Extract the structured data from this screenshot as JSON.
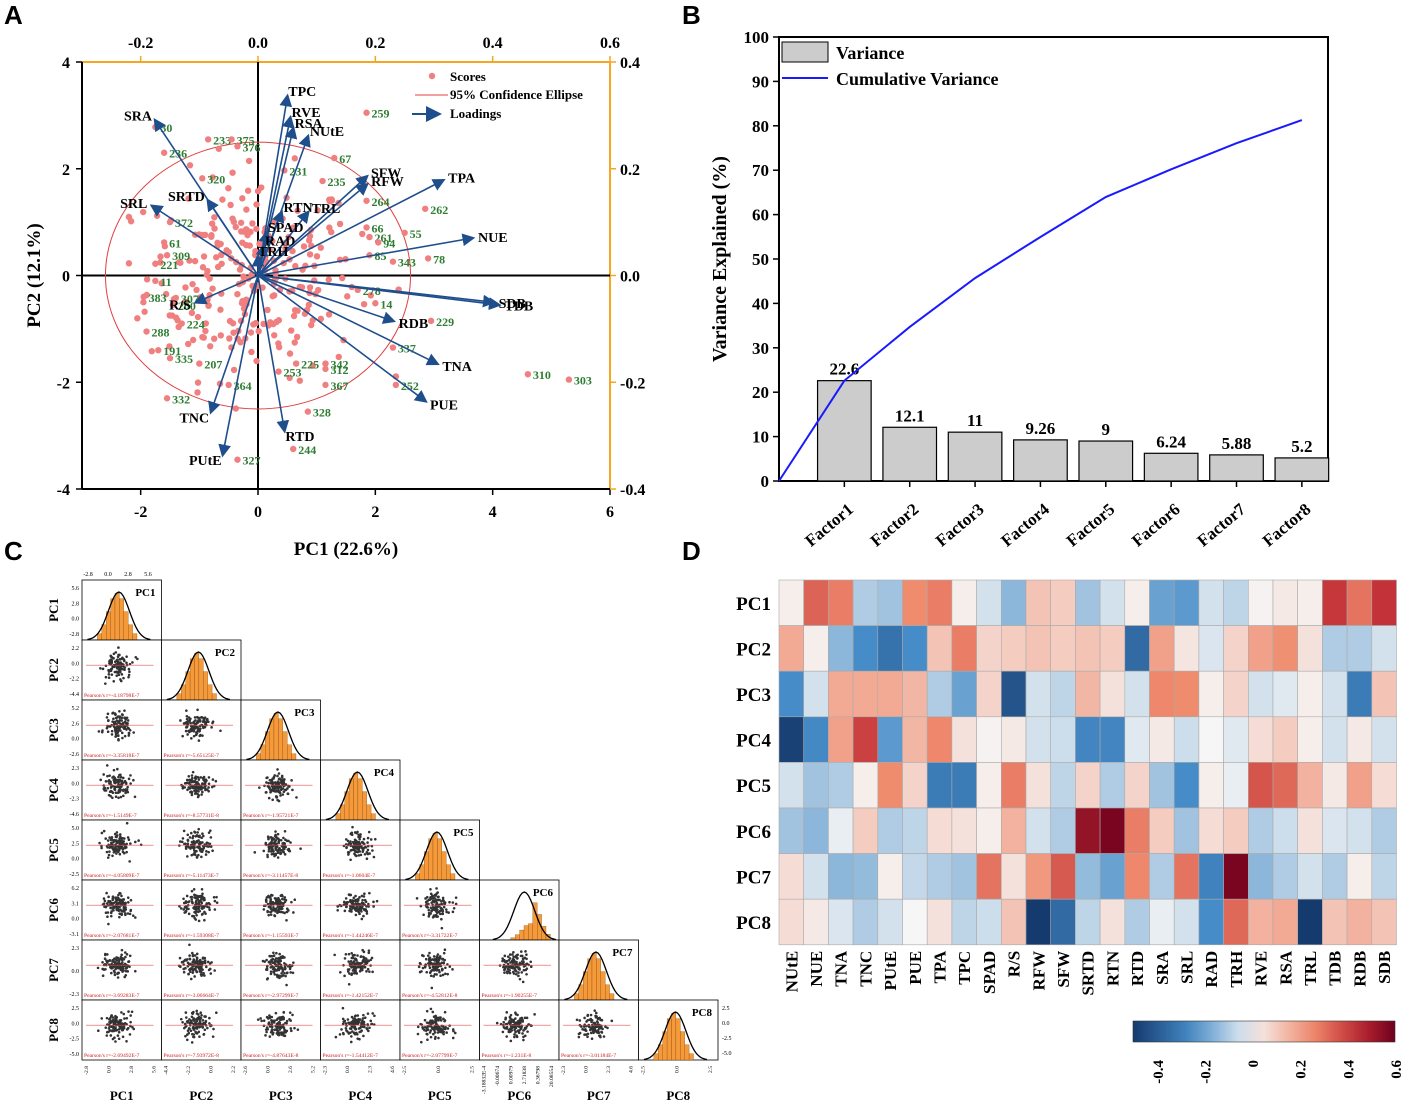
{
  "panel_labels": [
    "A",
    "B",
    "C",
    "D"
  ],
  "colors": {
    "orange": "#f5a623",
    "navy": "#1f4e8c",
    "green": "#2e7d32",
    "score": "#f07f7f",
    "gray_bar": "#cccccc",
    "blue_line": "#1a1aff",
    "hist": "#f59a3b"
  },
  "chart_data": [
    {
      "id": "A",
      "type": "scatter",
      "title": "",
      "xlabel": "PC1 (22.6%)",
      "ylabel": "PC2 (12.1%)",
      "xlim": [
        -3,
        6
      ],
      "ylim": [
        -4,
        4
      ],
      "x_ticks": [
        "-2",
        "0",
        "2",
        "4",
        "6"
      ],
      "y_ticks": [
        "4",
        "2",
        "0",
        "-2",
        "-4"
      ],
      "top_ticks": [
        "-0.2",
        "0.0",
        "0.2",
        "0.4",
        "0.6"
      ],
      "top_lim": [
        -0.3,
        0.6
      ],
      "right_ticks": [
        "0.4",
        "0.2",
        "0.0",
        "-0.2",
        "-0.4"
      ],
      "right_lim": [
        -0.4,
        0.4
      ],
      "legend": {
        "scores": "Scores",
        "ellipse": "95% Confidence Ellipse",
        "loadings": "Loadings"
      },
      "ellipse": {
        "cx": 0,
        "cy": 0,
        "rx": 2.6,
        "ry": 2.5
      },
      "loadings": [
        {
          "name": "TPC",
          "x": 0.05,
          "y": 0.335
        },
        {
          "name": "RVE",
          "x": 0.055,
          "y": 0.295
        },
        {
          "name": "RSA",
          "x": 0.06,
          "y": 0.275
        },
        {
          "name": "NUtE",
          "x": 0.085,
          "y": 0.26
        },
        {
          "name": "SRA",
          "x": -0.175,
          "y": 0.29
        },
        {
          "name": "SFW",
          "x": 0.185,
          "y": 0.185
        },
        {
          "name": "RFW",
          "x": 0.185,
          "y": 0.17
        },
        {
          "name": "TPA",
          "x": 0.315,
          "y": 0.178
        },
        {
          "name": "SRTD",
          "x": -0.085,
          "y": 0.14
        },
        {
          "name": "SRL",
          "x": -0.18,
          "y": 0.13
        },
        {
          "name": "RTN",
          "x": 0.04,
          "y": 0.118
        },
        {
          "name": "TRL",
          "x": 0.085,
          "y": 0.118
        },
        {
          "name": "NUE",
          "x": 0.365,
          "y": 0.07
        },
        {
          "name": "SPAD",
          "x": 0.015,
          "y": 0.08
        },
        {
          "name": "RAD",
          "x": 0.01,
          "y": 0.055
        },
        {
          "name": "TRH",
          "x": 0.0,
          "y": 0.035
        },
        {
          "name": "SDB",
          "x": 0.4,
          "y": -0.05
        },
        {
          "name": "TDB",
          "x": 0.41,
          "y": -0.055
        },
        {
          "name": "R/S",
          "x": -0.105,
          "y": -0.05
        },
        {
          "name": "RDB",
          "x": 0.23,
          "y": -0.085
        },
        {
          "name": "TNA",
          "x": 0.305,
          "y": -0.165
        },
        {
          "name": "PUE",
          "x": 0.285,
          "y": -0.235
        },
        {
          "name": "TNC",
          "x": -0.08,
          "y": -0.255
        },
        {
          "name": "RTD",
          "x": 0.045,
          "y": -0.29
        },
        {
          "name": "PUtE",
          "x": -0.06,
          "y": -0.335
        }
      ],
      "labeled_scores": [
        {
          "id": "259",
          "x": 1.85,
          "y": 3.05
        },
        {
          "id": "67",
          "x": 1.3,
          "y": 2.2
        },
        {
          "id": "235",
          "x": 1.1,
          "y": 1.77
        },
        {
          "id": "264",
          "x": 1.85,
          "y": 1.4
        },
        {
          "id": "262",
          "x": 2.85,
          "y": 1.25
        },
        {
          "id": "66",
          "x": 1.85,
          "y": 0.9
        },
        {
          "id": "261",
          "x": 1.9,
          "y": 0.72
        },
        {
          "id": "55",
          "x": 2.5,
          "y": 0.8
        },
        {
          "id": "94",
          "x": 2.05,
          "y": 0.62
        },
        {
          "id": "85",
          "x": 1.9,
          "y": 0.38
        },
        {
          "id": "343",
          "x": 2.3,
          "y": 0.26
        },
        {
          "id": "78",
          "x": 2.9,
          "y": 0.32
        },
        {
          "id": "278",
          "x": 1.7,
          "y": -0.27
        },
        {
          "id": "14",
          "x": 2.0,
          "y": -0.52
        },
        {
          "id": "229",
          "x": 2.95,
          "y": -0.85
        },
        {
          "id": "337",
          "x": 2.3,
          "y": -1.35
        },
        {
          "id": "252",
          "x": 2.35,
          "y": -2.05
        },
        {
          "id": "310",
          "x": 4.6,
          "y": -1.85
        },
        {
          "id": "303",
          "x": 5.3,
          "y": -1.95
        },
        {
          "id": "367",
          "x": 1.15,
          "y": -2.05
        },
        {
          "id": "342",
          "x": 1.15,
          "y": -1.65
        },
        {
          "id": "312",
          "x": 1.15,
          "y": -1.75
        },
        {
          "id": "225",
          "x": 0.65,
          "y": -1.65
        },
        {
          "id": "253",
          "x": 0.35,
          "y": -1.8
        },
        {
          "id": "328",
          "x": 0.85,
          "y": -2.55
        },
        {
          "id": "244",
          "x": 0.6,
          "y": -3.25
        },
        {
          "id": "327",
          "x": -0.35,
          "y": -3.45
        },
        {
          "id": "332",
          "x": -1.55,
          "y": -2.3
        },
        {
          "id": "364",
          "x": -0.5,
          "y": -2.05
        },
        {
          "id": "191",
          "x": -1.7,
          "y": -1.4
        },
        {
          "id": "335",
          "x": -1.5,
          "y": -1.55
        },
        {
          "id": "207",
          "x": -1.0,
          "y": -1.65
        },
        {
          "id": "288",
          "x": -1.9,
          "y": -1.05
        },
        {
          "id": "383",
          "x": -1.95,
          "y": -0.4
        },
        {
          "id": "200",
          "x": -1.45,
          "y": -0.55
        },
        {
          "id": "307",
          "x": -1.4,
          "y": -0.42
        },
        {
          "id": "224",
          "x": -1.3,
          "y": -0.9
        },
        {
          "id": "11",
          "x": -1.75,
          "y": -0.1
        },
        {
          "id": "221",
          "x": -1.75,
          "y": 0.22
        },
        {
          "id": "309",
          "x": -1.55,
          "y": 0.38
        },
        {
          "id": "61",
          "x": -1.6,
          "y": 0.62
        },
        {
          "id": "372",
          "x": -1.5,
          "y": 1.0
        },
        {
          "id": "236",
          "x": -1.6,
          "y": 2.3
        },
        {
          "id": "30",
          "x": -1.75,
          "y": 2.78
        },
        {
          "id": "233",
          "x": -0.85,
          "y": 2.55
        },
        {
          "id": "375",
          "x": -0.45,
          "y": 2.55
        },
        {
          "id": "376",
          "x": -0.35,
          "y": 2.42
        },
        {
          "id": "320",
          "x": -0.95,
          "y": 1.82
        },
        {
          "id": "231",
          "x": 0.45,
          "y": 1.97
        }
      ],
      "anonymous_score_count": 260,
      "anonymous_score_seed": 12345
    },
    {
      "id": "B",
      "type": "bar",
      "categories": [
        "Factor1",
        "Factor2",
        "Factor3",
        "Factor4",
        "Factor5",
        "Factor6",
        "Factor7",
        "Factor8"
      ],
      "values": [
        22.6,
        12.1,
        11,
        9.26,
        9,
        6.24,
        5.88,
        5.2
      ],
      "value_labels": [
        "22.6",
        "12.1",
        "11",
        "9.26",
        "9",
        "6.24",
        "5.88",
        "5.2"
      ],
      "cumulative": [
        0,
        22.6,
        34.7,
        45.7,
        54.96,
        63.96,
        70.2,
        76.08,
        81.28
      ],
      "ylabel": "Variance Explained (%)",
      "xlabel": "",
      "ylim": [
        0,
        100
      ],
      "y_ticks": [
        "0",
        "10",
        "20",
        "30",
        "40",
        "50",
        "60",
        "70",
        "80",
        "90",
        "100"
      ],
      "legend": [
        "Variance",
        "Cumulative Variance"
      ]
    },
    {
      "id": "C",
      "type": "scatter",
      "title": "",
      "variables": [
        "PC1",
        "PC2",
        "PC3",
        "PC4",
        "PC5",
        "PC6",
        "PC7",
        "PC8"
      ],
      "diag_left_ticks": {
        "PC1": [
          "5.6",
          "2.8",
          "0.0",
          "-2.8"
        ],
        "PC2": [
          "2.2",
          "0.0",
          "-2.2",
          "-4.4"
        ],
        "PC3": [
          "5.2",
          "2.6",
          "0.0",
          "-2.6"
        ],
        "PC4": [
          "2.3",
          "0.0",
          "-2.3",
          "-4.6"
        ],
        "PC5": [
          "5.0",
          "2.5",
          "0.0",
          "-2.5"
        ],
        "PC6": [
          "6.2",
          "3.1",
          "0.0",
          "-3.1"
        ],
        "PC7": [
          "2.3",
          "0.0",
          "-2.3"
        ],
        "PC8": [
          "2.5",
          "0.0",
          "-2.5",
          "-5.0"
        ]
      },
      "top_ticks": [
        "-2.8",
        "0.0",
        "2.8",
        "5.6"
      ],
      "pc8_right_ticks": [
        "2.5",
        "0.0",
        "-2.5",
        "-5.0"
      ],
      "bottom_ticks": {
        "PC1": [
          "-2.8",
          "0.0",
          "2.8",
          "5.6"
        ],
        "PC2": [
          "-4.4",
          "-2.2",
          "0.0",
          "2.2"
        ],
        "PC3": [
          "-2.6",
          "0.0",
          "2.6",
          "5.2"
        ],
        "PC4": [
          "-2.3",
          "0.0",
          "2.3",
          "4.6"
        ],
        "PC5": [
          "-2.5",
          "0.0",
          "2.5"
        ],
        "PC6": [
          "-3.18832E-4",
          "-0.00674",
          "0.00979",
          "2.71838",
          "0.36798",
          "20.08554"
        ],
        "PC7": [
          "-2.3",
          "0.0",
          "2.3",
          "4.6"
        ],
        "PC8": [
          "-2.5",
          "0.0",
          "2.5"
        ]
      },
      "correlations": [
        [
          "Pearson's r=-4.18798E-7"
        ],
        [
          "Pearson's r=-3.35818E-7",
          "Pearson's r=-5.65125E-7"
        ],
        [
          "Pearson's r=-1.5149E-7",
          "Pearson's r=-8.57731E-8",
          "Pearson's r=-1.95721E-7"
        ],
        [
          "Pearson's r=-4.05809E-7",
          "Pearson's r=-5.11473E-7",
          "Pearson's r=-3.11457E-8",
          "Pearson's r=-1.0604E-7"
        ],
        [
          "Pearson's r=-2.07681E-7",
          "Pearson's r=-1.59308E-7",
          "Pearson's r=-1.15593E-7",
          "Pearson's r=-1.44246E-7",
          "Pearson's r=-3.31722E-7"
        ],
        [
          "Pearson's r=-3.69283E-7",
          "Pearson's r=-3.06664E-7",
          "Pearson's r=-2.97299E-7",
          "Pearson's r=-1.42152E-7",
          "Pearson's r=-4.52812E-8",
          "Pearson's r=-1.90255E-7"
        ],
        [
          "Pearson's r=-2.69492E-7",
          "Pearson's r=-7.93972E-8",
          "Pearson's r=-4.87643E-8",
          "Pearson's r=-1.54412E-7",
          "Pearson's r=-2.07799E-7",
          "Pearson's r=-1.231E-8",
          "Pearson's r=-3.01184E-7"
        ]
      ]
    },
    {
      "id": "D",
      "type": "heatmap",
      "rows": [
        "PC1",
        "PC2",
        "PC3",
        "PC4",
        "PC5",
        "PC6",
        "PC7",
        "PC8"
      ],
      "columns": [
        "NUtE",
        "NUE",
        "TNA",
        "TNC",
        "PUtE",
        "PUE",
        "TPA",
        "TPC",
        "SPAD",
        "R/S",
        "RFW",
        "SFW",
        "SRTD",
        "RTN",
        "RTD",
        "SRA",
        "SRL",
        "RAD",
        "TRH",
        "RVE",
        "RSA",
        "TRL",
        "TDB",
        "RDB",
        "SDB"
      ],
      "values": [
        [
          0.02,
          0.33,
          0.28,
          -0.1,
          -0.12,
          0.25,
          0.28,
          0.02,
          -0.05,
          -0.15,
          0.12,
          0.1,
          -0.12,
          -0.05,
          0.02,
          -0.2,
          -0.22,
          -0.05,
          -0.08,
          0.01,
          0.03,
          0.02,
          0.42,
          0.3,
          0.43
        ],
        [
          0.18,
          0.02,
          -0.15,
          -0.25,
          -0.33,
          -0.25,
          0.12,
          0.28,
          0.08,
          0.1,
          0.12,
          0.1,
          0.12,
          0.1,
          -0.35,
          0.2,
          0.04,
          -0.04,
          0.08,
          0.2,
          0.24,
          0.05,
          -0.1,
          -0.1,
          -0.05
        ],
        [
          -0.25,
          -0.05,
          0.18,
          0.18,
          0.18,
          0.15,
          -0.1,
          -0.2,
          0.08,
          -0.42,
          -0.05,
          -0.08,
          0.15,
          0.05,
          -0.05,
          0.26,
          0.25,
          0.02,
          0.08,
          -0.05,
          -0.03,
          0.02,
          -0.05,
          -0.3,
          0.12
        ],
        [
          -0.48,
          -0.26,
          0.2,
          0.4,
          -0.22,
          0.15,
          0.26,
          0.05,
          0.01,
          0.03,
          -0.05,
          -0.06,
          -0.27,
          -0.27,
          -0.03,
          0.03,
          -0.06,
          0.0,
          -0.03,
          0.06,
          0.1,
          0.02,
          -0.05,
          0.03,
          -0.05
        ],
        [
          -0.05,
          -0.12,
          -0.1,
          0.02,
          0.25,
          0.08,
          -0.3,
          -0.3,
          0.02,
          0.28,
          0.05,
          -0.08,
          0.08,
          -0.1,
          0.08,
          -0.12,
          -0.25,
          0.02,
          -0.02,
          0.36,
          0.32,
          0.16,
          0.03,
          0.2,
          0.06
        ],
        [
          -0.12,
          -0.15,
          -0.02,
          0.1,
          -0.1,
          -0.08,
          0.06,
          0.05,
          0.02,
          0.16,
          -0.05,
          -0.1,
          0.53,
          0.58,
          0.28,
          0.1,
          -0.12,
          0.06,
          0.1,
          -0.1,
          -0.06,
          0.05,
          -0.04,
          -0.05,
          -0.1
        ],
        [
          0.06,
          -0.05,
          -0.15,
          -0.14,
          0.02,
          -0.07,
          -0.1,
          -0.12,
          0.3,
          0.05,
          0.22,
          0.35,
          -0.14,
          -0.2,
          0.26,
          -0.1,
          0.3,
          -0.28,
          0.58,
          -0.15,
          -0.1,
          -0.05,
          -0.1,
          0.02,
          -0.08
        ],
        [
          0.06,
          0.03,
          -0.04,
          -0.1,
          -0.05,
          0.0,
          0.05,
          -0.08,
          -0.06,
          0.12,
          -0.5,
          -0.35,
          -0.08,
          0.05,
          -0.1,
          -0.02,
          -0.05,
          -0.25,
          0.32,
          0.16,
          0.18,
          -0.5,
          0.12,
          0.16,
          0.12
        ]
      ],
      "colorbar_ticks": [
        "-0.4",
        "-0.2",
        "0",
        "0.2",
        "0.4",
        "0.6"
      ],
      "colorbar_range": [
        -0.5,
        0.6
      ]
    }
  ]
}
